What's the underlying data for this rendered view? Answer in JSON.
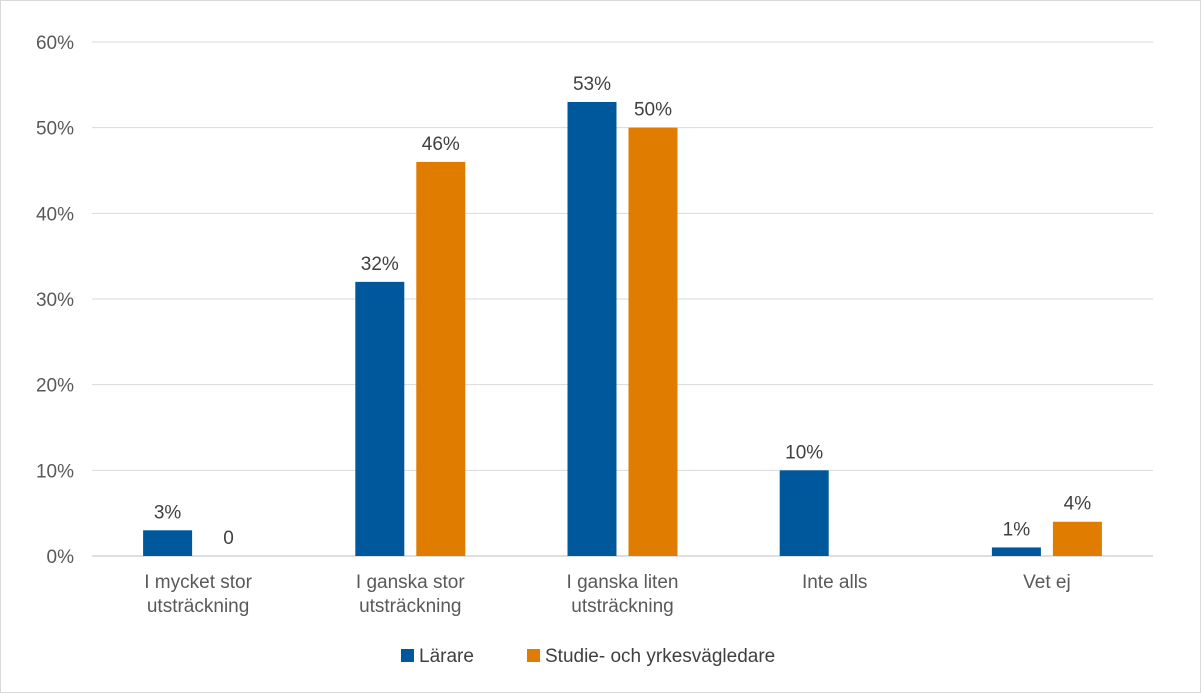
{
  "chart_data": {
    "type": "bar",
    "categories": [
      [
        "I mycket stor",
        "utsträckning"
      ],
      [
        "I ganska stor",
        "utsträckning"
      ],
      [
        "I ganska liten",
        "utsträckning"
      ],
      [
        "Inte alls"
      ],
      [
        "Vet ej"
      ]
    ],
    "series": [
      {
        "name": "Lärare",
        "color": "#00589c",
        "values": [
          3,
          32,
          53,
          10,
          1
        ],
        "labels": [
          "3%",
          "32%",
          "53%",
          "10%",
          "1%"
        ]
      },
      {
        "name": "Studie- och yrkesvägledare",
        "color": "#e07c00",
        "values": [
          0,
          46,
          50,
          0,
          4
        ],
        "labels": [
          "0",
          "46%",
          "50%",
          "",
          "4%"
        ]
      }
    ],
    "ylim": [
      0,
      60
    ],
    "yticks": [
      "0%",
      "10%",
      "20%",
      "30%",
      "40%",
      "50%",
      "60%"
    ],
    "grid": true,
    "legend_position": "bottom",
    "title": "",
    "xlabel": "",
    "ylabel": ""
  }
}
